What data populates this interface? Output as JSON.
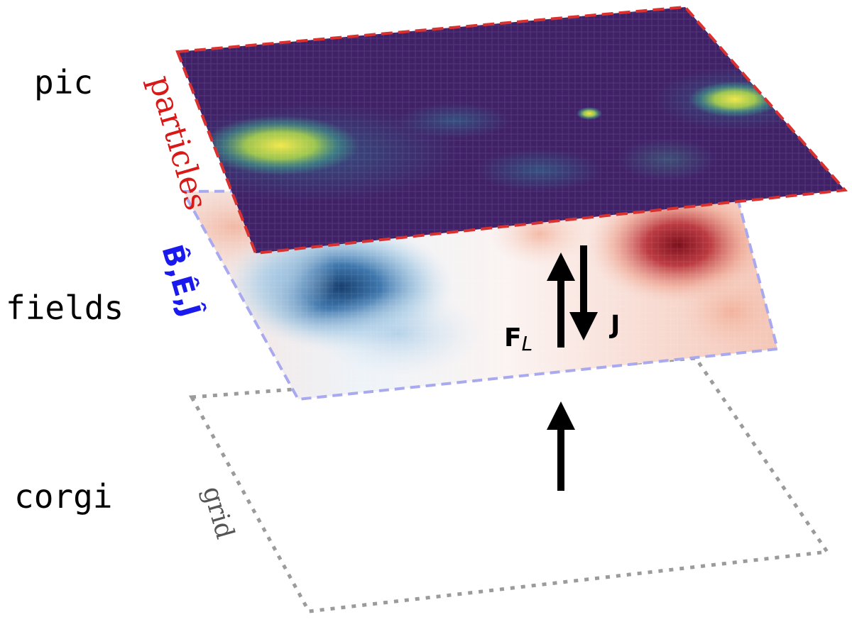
{
  "layers": {
    "pic": {
      "label": "pic",
      "side_label": "particles",
      "border_color": "#d93030"
    },
    "fields": {
      "label": "fields",
      "side_label": "B̂,Ê,Ĵ",
      "border_color": "#a9a9f0",
      "side_label_color": "#1a1aee"
    },
    "corgi": {
      "label": "corgi",
      "side_label": "grid",
      "border_color": "#999999"
    }
  },
  "arrows": {
    "force_label": "F",
    "force_subscript": "L",
    "current_label": "J"
  },
  "colors": {
    "pic_base": "#3d1c63",
    "pic_hot": "#e8e04a",
    "pic_mid": "#3f9a8c",
    "field_blue": "#1f4f86",
    "field_red": "#8d1621"
  }
}
